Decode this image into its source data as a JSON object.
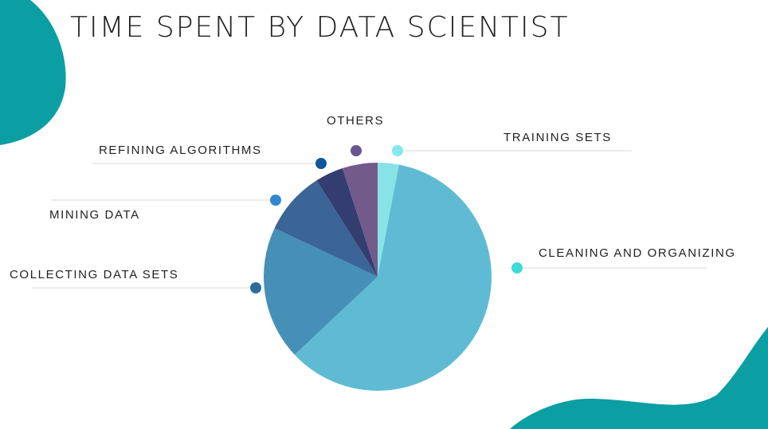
{
  "chart_data": {
    "type": "pie",
    "title": "TIME SPENT BY DATA SCIENTIST",
    "slices": [
      {
        "label": "TRAINING SETS",
        "value": 3,
        "color": "#88e3e6"
      },
      {
        "label": "CLEANING AND ORGANIZING",
        "value": 60,
        "color": "#5fbbd3"
      },
      {
        "label": "COLLECTING DATA SETS",
        "value": 19,
        "color": "#4690b8"
      },
      {
        "label": "MINING DATA",
        "value": 9,
        "color": "#3a6596"
      },
      {
        "label": "REFINING ALGORITHMS",
        "value": 4,
        "color": "#343d70"
      },
      {
        "label": "OTHERS",
        "value": 5,
        "color": "#725a8b"
      }
    ],
    "legend": [
      {
        "label": "TRAINING SETS",
        "dot_color": "#86e8ea"
      },
      {
        "label": "CLEANING AND ORGANIZING",
        "dot_color": "#3ddad7"
      },
      {
        "label": "COLLECTING DATA SETS",
        "dot_color": "#2e6b9a"
      },
      {
        "label": "MINING DATA",
        "dot_color": "#2e87d0"
      },
      {
        "label": "REFINING ALGORITHMS",
        "dot_color": "#0f579a"
      },
      {
        "label": "OTHERS",
        "dot_color": "#6a5591"
      }
    ]
  },
  "decor": {
    "accent_color": "#0b9fa3"
  }
}
